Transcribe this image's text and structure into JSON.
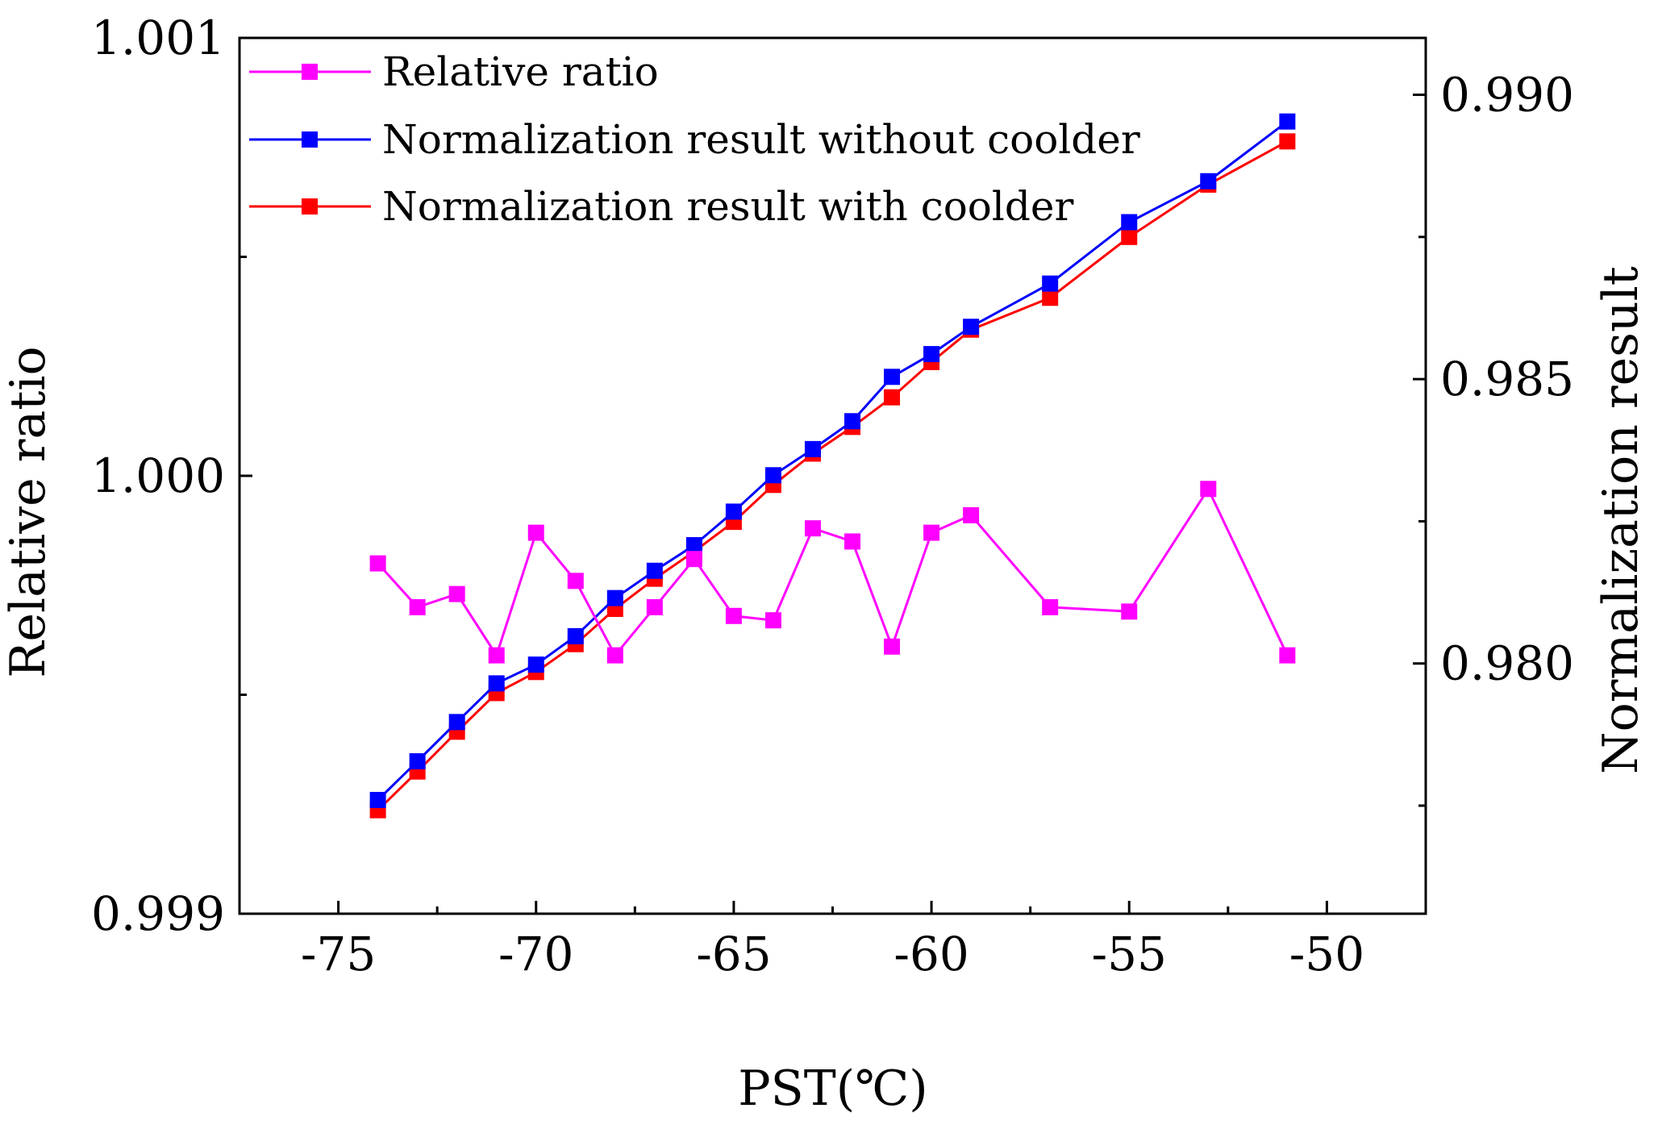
{
  "chart_data": {
    "type": "line",
    "title": "",
    "xlabel": "PST(℃)",
    "ylabel_left": "Relative ratio",
    "ylabel_right": "Normalization result",
    "xlim": [
      -77.5,
      -47.5
    ],
    "ylim_left": [
      0.999,
      1.001
    ],
    "ylim_right": [
      0.9756,
      0.991
    ],
    "x_ticks": [
      "-75",
      "-70",
      "-65",
      "-60",
      "-55",
      "-50"
    ],
    "y_left_ticks": [
      "0.999",
      "1.000",
      "1.001"
    ],
    "y_right_ticks": [
      "0.980",
      "0.985",
      "0.990"
    ],
    "legend_position": "top-left",
    "series": [
      {
        "name": "Relative ratio",
        "axis": "left",
        "color": "#ff00ff",
        "x": [
          -74,
          -73,
          -72,
          -71,
          -70,
          -69,
          -68,
          -67,
          -66,
          -65,
          -64,
          -63,
          -62,
          -61,
          -60,
          -59,
          -57,
          -55,
          -53,
          -51
        ],
        "values": [
          0.9998,
          0.9997,
          0.99973,
          0.99959,
          0.99987,
          0.99976,
          0.99959,
          0.9997,
          0.99981,
          0.99968,
          0.99967,
          0.99988,
          0.99985,
          0.99961,
          0.99987,
          0.99991,
          0.9997,
          0.99969,
          0.99997,
          0.99959
        ]
      },
      {
        "name": "Normalization result without coolder",
        "axis": "right",
        "color": "#0000ff",
        "x": [
          -74,
          -73,
          -72,
          -71,
          -70,
          -69,
          -68,
          -67,
          -66,
          -65,
          -64,
          -63,
          -62,
          -61,
          -60,
          -59,
          -57,
          -55,
          -53,
          -51
        ],
        "values": [
          0.9776,
          0.97828,
          0.97897,
          0.97965,
          0.97998,
          0.98048,
          0.98115,
          0.98163,
          0.98208,
          0.98267,
          0.98331,
          0.98377,
          0.98426,
          0.98504,
          0.98544,
          0.98592,
          0.98668,
          0.98776,
          0.98848,
          0.98953
        ]
      },
      {
        "name": "Normalization result with coolder",
        "axis": "right",
        "color": "#ff0000",
        "x": [
          -74,
          -73,
          -72,
          -71,
          -70,
          -69,
          -68,
          -67,
          -66,
          -65,
          -64,
          -63,
          -62,
          -61,
          -60,
          -59,
          -57,
          -55,
          -53,
          -51
        ],
        "values": [
          0.97742,
          0.9781,
          0.9788,
          0.97948,
          0.97985,
          0.98034,
          0.98096,
          0.98149,
          0.98197,
          0.98249,
          0.98314,
          0.98369,
          0.98416,
          0.98468,
          0.9853,
          0.98587,
          0.98643,
          0.9875,
          0.98842,
          0.98918
        ]
      }
    ]
  }
}
